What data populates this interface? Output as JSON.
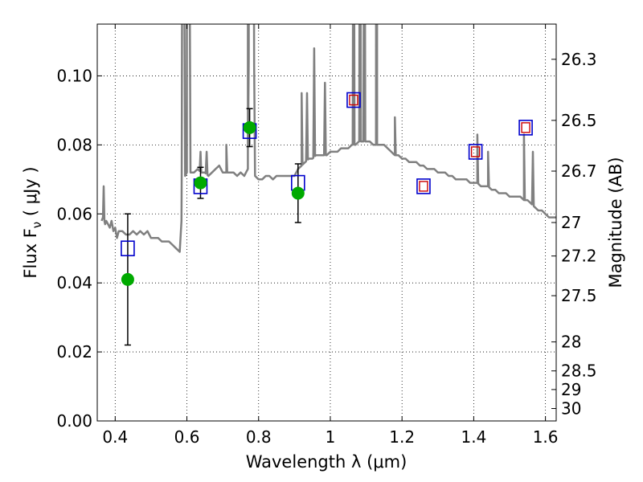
{
  "chart_data": {
    "type": "line",
    "xlabel": "Wavelength  λ (μm)",
    "ylabel": "Flux  F",
    "ylabel_sub": "ν",
    "ylabel_unit": " ( μJy )",
    "y2label": "Magnitude (AB)",
    "xlim": [
      0.35,
      1.63
    ],
    "ylim": [
      0.0,
      0.115
    ],
    "grid": true,
    "x_ticks": [
      0.4,
      0.6,
      0.8,
      1.0,
      1.2,
      1.4,
      1.6
    ],
    "x_tick_labels": [
      "0.4",
      "0.6",
      "0.8",
      "1",
      "1.2",
      "1.4",
      "1.6"
    ],
    "y_ticks": [
      0.0,
      0.02,
      0.04,
      0.06,
      0.08,
      0.1
    ],
    "y_tick_labels": [
      "0.00",
      "0.02",
      "0.04",
      "0.06",
      "0.08",
      "0.10"
    ],
    "y2_ticks_flux": [
      0.1048,
      0.0871,
      0.0724,
      0.0575,
      0.0478,
      0.0363,
      0.0229,
      0.0145,
      0.0091,
      0.0036
    ],
    "y2_tick_labels": [
      "26.3",
      "26.5",
      "26.7",
      "27",
      "27.2",
      "27.5",
      "28",
      "28.5",
      "29",
      "30"
    ],
    "colors": {
      "model": "#808080",
      "photometry_outer": "#0000cc",
      "photometry_inner": "#cc0000",
      "observed": "#00aa00",
      "errorbar": "#000000"
    },
    "series": [
      {
        "kind": "line",
        "x": [
          0.362,
          0.366,
          0.368,
          0.37,
          0.372,
          0.375,
          0.38,
          0.385,
          0.39,
          0.395,
          0.4,
          0.405,
          0.41,
          0.42,
          0.43,
          0.44,
          0.45,
          0.46,
          0.47,
          0.48,
          0.49,
          0.5,
          0.51,
          0.52,
          0.53,
          0.54,
          0.55,
          0.56,
          0.57,
          0.58,
          0.585,
          0.59,
          0.595,
          0.6,
          0.605,
          0.61,
          0.62,
          0.63,
          0.64,
          0.65,
          0.66,
          0.67,
          0.68,
          0.69,
          0.7,
          0.71,
          0.72,
          0.73,
          0.74,
          0.75,
          0.76,
          0.77,
          0.78,
          0.79,
          0.8,
          0.81,
          0.82,
          0.83,
          0.84,
          0.85,
          0.86,
          0.87,
          0.88,
          0.89,
          0.9,
          0.91,
          0.92,
          0.93,
          0.94,
          0.95,
          0.96,
          0.97,
          0.98,
          0.99,
          1.0,
          1.01,
          1.02,
          1.03,
          1.04,
          1.05,
          1.06,
          1.07,
          1.08,
          1.09,
          1.1,
          1.11,
          1.12,
          1.13,
          1.14,
          1.15,
          1.16,
          1.17,
          1.18,
          1.19,
          1.2,
          1.21,
          1.22,
          1.23,
          1.24,
          1.25,
          1.26,
          1.27,
          1.28,
          1.29,
          1.3,
          1.31,
          1.32,
          1.33,
          1.34,
          1.35,
          1.36,
          1.37,
          1.38,
          1.39,
          1.4,
          1.41,
          1.42,
          1.43,
          1.44,
          1.45,
          1.46,
          1.47,
          1.48,
          1.49,
          1.5,
          1.51,
          1.52,
          1.53,
          1.54,
          1.55,
          1.56,
          1.57,
          1.58,
          1.59,
          1.6,
          1.61,
          1.62,
          1.63
        ],
        "y": [
          0.058,
          0.059,
          0.068,
          0.058,
          0.057,
          0.058,
          0.057,
          0.056,
          0.058,
          0.055,
          0.056,
          0.053,
          0.055,
          0.055,
          0.054,
          0.054,
          0.055,
          0.054,
          0.055,
          0.054,
          0.055,
          0.053,
          0.053,
          0.053,
          0.052,
          0.052,
          0.052,
          0.051,
          0.05,
          0.049,
          0.058,
          0.2,
          0.071,
          0.072,
          0.2,
          0.072,
          0.072,
          0.073,
          0.072,
          0.072,
          0.071,
          0.072,
          0.073,
          0.074,
          0.072,
          0.072,
          0.072,
          0.072,
          0.071,
          0.072,
          0.071,
          0.073,
          0.2,
          0.071,
          0.07,
          0.07,
          0.071,
          0.071,
          0.07,
          0.071,
          0.071,
          0.071,
          0.071,
          0.071,
          0.071,
          0.073,
          0.074,
          0.075,
          0.076,
          0.076,
          0.077,
          0.077,
          0.077,
          0.077,
          0.078,
          0.078,
          0.078,
          0.079,
          0.079,
          0.079,
          0.08,
          0.08,
          0.081,
          0.081,
          0.081,
          0.081,
          0.08,
          0.08,
          0.08,
          0.08,
          0.079,
          0.078,
          0.077,
          0.077,
          0.076,
          0.076,
          0.075,
          0.075,
          0.075,
          0.074,
          0.074,
          0.073,
          0.073,
          0.073,
          0.072,
          0.072,
          0.072,
          0.071,
          0.071,
          0.07,
          0.07,
          0.07,
          0.07,
          0.069,
          0.069,
          0.069,
          0.068,
          0.068,
          0.068,
          0.067,
          0.067,
          0.066,
          0.066,
          0.066,
          0.065,
          0.065,
          0.065,
          0.065,
          0.064,
          0.064,
          0.063,
          0.062,
          0.061,
          0.061,
          0.06,
          0.059,
          0.059,
          0.059
        ]
      },
      {
        "kind": "line-peaks",
        "x": [
          0.368,
          0.588,
          0.6,
          0.638,
          0.655,
          0.71,
          0.77,
          0.773,
          0.778,
          0.785,
          0.92,
          0.935,
          0.955,
          0.985,
          1.065,
          1.083,
          1.095,
          1.128,
          1.13,
          1.18,
          1.41,
          1.44,
          1.54,
          1.565
        ],
        "y": [
          0.068,
          0.2,
          0.2,
          0.078,
          0.078,
          0.08,
          0.2,
          0.2,
          0.2,
          0.2,
          0.095,
          0.095,
          0.108,
          0.098,
          0.2,
          0.2,
          0.2,
          0.2,
          0.2,
          0.088,
          0.083,
          0.078,
          0.083,
          0.078
        ]
      },
      {
        "kind": "scatter-square",
        "x": [
          0.435,
          0.638,
          0.775,
          0.91,
          1.065,
          1.26,
          1.405,
          1.545
        ],
        "y": [
          0.05,
          0.068,
          0.084,
          0.069,
          0.093,
          0.068,
          0.078,
          0.085
        ]
      },
      {
        "kind": "scatter-square-inner",
        "x": [
          1.065,
          1.26,
          1.405,
          1.545
        ],
        "y": [
          0.093,
          0.068,
          0.078,
          0.085
        ]
      },
      {
        "kind": "scatter-errorbar",
        "x": [
          0.435,
          0.638,
          0.775,
          0.91
        ],
        "y": [
          0.041,
          0.069,
          0.085,
          0.066
        ],
        "yerr": [
          0.019,
          0.0045,
          0.0055,
          0.0085
        ]
      }
    ]
  }
}
